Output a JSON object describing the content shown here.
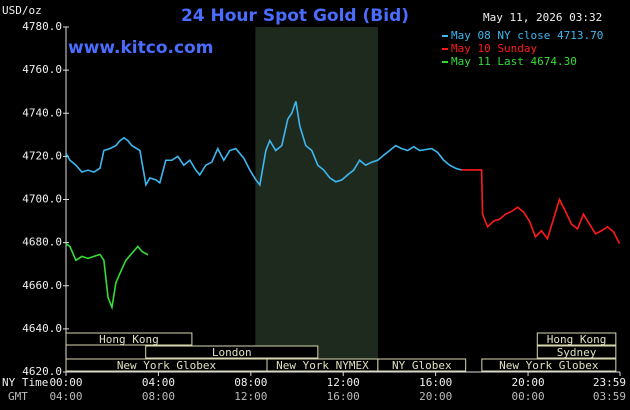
{
  "chart_data": {
    "type": "line",
    "title": "24 Hour Spot Gold (Bid)",
    "watermark": "www.kitco.com",
    "y_label": "USD/oz",
    "timestamp": "May 11, 2026 03:32",
    "x_label": "NY Time",
    "x2_label": "GMT",
    "xlim": [
      0,
      23.98
    ],
    "ylim": [
      4620,
      4780
    ],
    "xticks": [
      {
        "value": 0,
        "label": "00:00"
      },
      {
        "value": 4,
        "label": "04:00"
      },
      {
        "value": 8,
        "label": "08:00"
      },
      {
        "value": 12,
        "label": "12:00"
      },
      {
        "value": 16,
        "label": "16:00"
      },
      {
        "value": 20,
        "label": "20:00"
      },
      {
        "value": 23.98,
        "label": "23:59"
      }
    ],
    "x2_tick_labels": [
      "04:00",
      "08:00",
      "12:00",
      "16:00",
      "20:00",
      "00:00",
      "03:59"
    ],
    "yticks": [
      {
        "value": 4620,
        "label": "4620.0"
      },
      {
        "value": 4640,
        "label": "4640.0"
      },
      {
        "value": 4660,
        "label": "4660.0"
      },
      {
        "value": 4680,
        "label": "4680.0"
      },
      {
        "value": 4700,
        "label": "4700.0"
      },
      {
        "value": 4720,
        "label": "4720.0"
      },
      {
        "value": 4740,
        "label": "4740.0"
      },
      {
        "value": 4760,
        "label": "4760.0"
      },
      {
        "value": 4780,
        "label": "4780.0"
      }
    ],
    "highlight": [
      8.2,
      13.5
    ],
    "legend": "upper right",
    "session_rows": [
      [
        {
          "label": "Hong Kong",
          "start": 0,
          "end": 5.45
        },
        {
          "label": "Hong Kong",
          "start": 20.4,
          "end": 23.8
        }
      ],
      [
        {
          "label": "London",
          "start": 3.45,
          "end": 10.9
        },
        {
          "label": "Sydney",
          "start": 20.4,
          "end": 23.8
        }
      ],
      [
        {
          "label": "New York Globex",
          "start": 0,
          "end": 8.7
        },
        {
          "label": "New York NYMEX",
          "start": 8.7,
          "end": 13.5
        },
        {
          "label": "NY Globex",
          "start": 13.5,
          "end": 17.3
        },
        {
          "label": "New York Globex",
          "start": 18,
          "end": 23.8
        }
      ]
    ],
    "series": [
      {
        "name": "May 08 NY close 4713.70",
        "color": "#3cb8f0",
        "x": [
          0,
          0.17,
          0.43,
          0.69,
          0.95,
          1.21,
          1.47,
          1.64,
          1.9,
          2.16,
          2.34,
          2.51,
          2.68,
          2.85,
          3.2,
          3.46,
          3.63,
          3.89,
          4.06,
          4.32,
          4.58,
          4.84,
          5.1,
          5.36,
          5.62,
          5.79,
          6.05,
          6.31,
          6.57,
          6.83,
          7.09,
          7.35,
          7.7,
          7.96,
          8.22,
          8.39,
          8.65,
          8.82,
          9.08,
          9.34,
          9.6,
          9.77,
          9.95,
          10.12,
          10.38,
          10.64,
          10.9,
          11.16,
          11.42,
          11.68,
          11.94,
          12.19,
          12.45,
          12.71,
          12.97,
          13.23,
          13.49,
          13.75,
          14.01,
          14.27,
          14.53,
          14.79,
          15.05,
          15.31,
          15.57,
          15.83,
          16.09,
          16.35,
          16.61,
          16.86,
          17.12
        ],
        "values": [
          4721.4,
          4718.2,
          4715.9,
          4712.7,
          4713.6,
          4712.7,
          4714.5,
          4722.7,
          4723.6,
          4725.0,
          4727.3,
          4728.6,
          4727.3,
          4725.0,
          4722.7,
          4706.8,
          4710.0,
          4709.1,
          4707.7,
          4718.2,
          4718.2,
          4720.0,
          4715.9,
          4718.2,
          4713.6,
          4711.4,
          4715.9,
          4717.3,
          4723.6,
          4718.2,
          4722.7,
          4723.6,
          4719.1,
          4713.6,
          4709.1,
          4706.8,
          4722.7,
          4727.3,
          4722.7,
          4725.0,
          4737.3,
          4740.0,
          4745.5,
          4734.1,
          4725.0,
          4722.7,
          4715.9,
          4713.6,
          4710.0,
          4708.2,
          4709.1,
          4711.4,
          4713.6,
          4718.2,
          4715.9,
          4717.3,
          4718.2,
          4720.5,
          4722.7,
          4725.0,
          4723.6,
          4722.7,
          4724.5,
          4722.7,
          4723.2,
          4723.6,
          4721.8,
          4718.2,
          4715.9,
          4714.5,
          4713.7
        ]
      },
      {
        "name": "May 10 Sunday",
        "color": "#ff1a1a",
        "x": [
          17.12,
          17.99,
          18.03,
          18.25,
          18.51,
          18.77,
          19.03,
          19.29,
          19.55,
          19.81,
          20.06,
          20.32,
          20.58,
          20.84,
          21.1,
          21.36,
          21.62,
          21.88,
          22.14,
          22.4,
          22.66,
          22.92,
          23.18,
          23.44,
          23.7,
          23.96
        ],
        "values": [
          4713.7,
          4713.7,
          4693.2,
          4687.3,
          4690.0,
          4690.9,
          4693.2,
          4694.5,
          4696.4,
          4694.1,
          4690.0,
          4682.7,
          4685.5,
          4681.8,
          4690.9,
          4700.0,
          4694.5,
          4688.6,
          4686.4,
          4693.2,
          4688.6,
          4684.1,
          4685.5,
          4687.3,
          4685.0,
          4679.5
        ]
      },
      {
        "name": "May 11 Last 4674.30",
        "color": "#33dd33",
        "x": [
          0,
          0.17,
          0.43,
          0.69,
          0.95,
          1.21,
          1.47,
          1.64,
          1.82,
          1.99,
          2.16,
          2.34,
          2.59,
          2.85,
          3.11,
          3.29,
          3.55
        ],
        "values": [
          4679.5,
          4678.2,
          4671.8,
          4673.6,
          4672.7,
          4673.6,
          4674.5,
          4671.8,
          4654.5,
          4650.0,
          4661.4,
          4665.9,
          4671.8,
          4675.0,
          4678.2,
          4675.9,
          4674.3
        ]
      }
    ]
  }
}
